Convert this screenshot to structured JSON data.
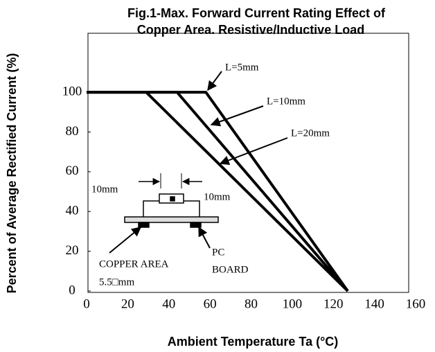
{
  "chart_data": {
    "type": "line",
    "title": [
      "Fig.1-Max. Forward Current Rating Effect of",
      "Copper Area. Resistive/Inductive Load"
    ],
    "x_label": "Ambient Temperature Ta (°C)",
    "y_label": "Percent of Average Rectified Current (%)",
    "xlim": [
      0,
      160
    ],
    "xticks": [
      0,
      20,
      40,
      60,
      80,
      100,
      120,
      140,
      160
    ],
    "ylim": [
      0,
      130
    ],
    "yticks": [
      0,
      20,
      40,
      60,
      80,
      100
    ],
    "grid": false,
    "series": [
      {
        "name": "L=5mm",
        "color": "#000000",
        "x": [
          0,
          58,
          127
        ],
        "values": [
          100,
          100,
          0
        ]
      },
      {
        "name": "L=10mm",
        "color": "#000000",
        "x": [
          0,
          44,
          127
        ],
        "values": [
          100,
          100,
          0
        ]
      },
      {
        "name": "L=20mm",
        "color": "#000000",
        "x": [
          0,
          29,
          127
        ],
        "values": [
          100,
          100,
          0
        ]
      }
    ],
    "annotations": [
      "10mm",
      "10mm",
      "COPPER AREA",
      "5.5□mm",
      "PC",
      "BOARD"
    ]
  }
}
